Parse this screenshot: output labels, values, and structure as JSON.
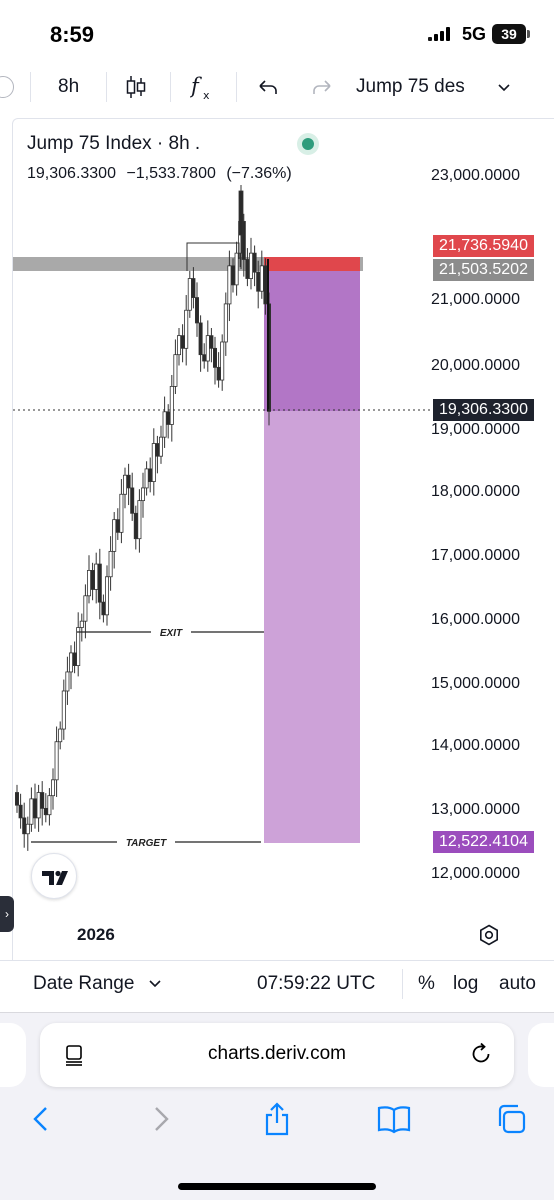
{
  "status_bar": {
    "time": "8:59",
    "network": "5G",
    "battery": "39"
  },
  "toolbar": {
    "interval": "8h",
    "symbol_search": "Jump 75 des"
  },
  "legend": {
    "title": "Jump 75 Index · 8h .",
    "last": "19,306.3300",
    "change": "−1,533.7800",
    "change_pct": "(−7.36%)"
  },
  "price_axis": {
    "ticks": [
      "23,000.0000",
      "21,000.0000",
      "20,000.0000",
      "19,000.0000",
      "18,000.0000",
      "17,000.0000",
      "16,000.0000",
      "15,000.0000",
      "14,000.0000",
      "13,000.0000",
      "12,000.0000"
    ],
    "labels": {
      "stop": "21,736.5940",
      "entry_zone": "21,503.5202",
      "current": "19,306.3300",
      "target": "12,522.4104"
    }
  },
  "annotations": {
    "exit": "EXIT",
    "target": "TARGET"
  },
  "time_axis": {
    "year": "2026"
  },
  "bottom_bar": {
    "date_range": "Date Range",
    "clock": "07:59:22 UTC",
    "percent": "%",
    "log": "log",
    "auto": "auto"
  },
  "browser": {
    "url": "charts.deriv.com"
  },
  "colors": {
    "bull": "#ffffff",
    "bear": "#2a2a2a",
    "stop_red": "#e0474c",
    "zone_gray": "#8c8c8c",
    "current_dark": "#1e222d",
    "target_purple": "#9b4dbd",
    "profit_dark": "#b276c6",
    "profit_light": "#cda2d8"
  }
}
